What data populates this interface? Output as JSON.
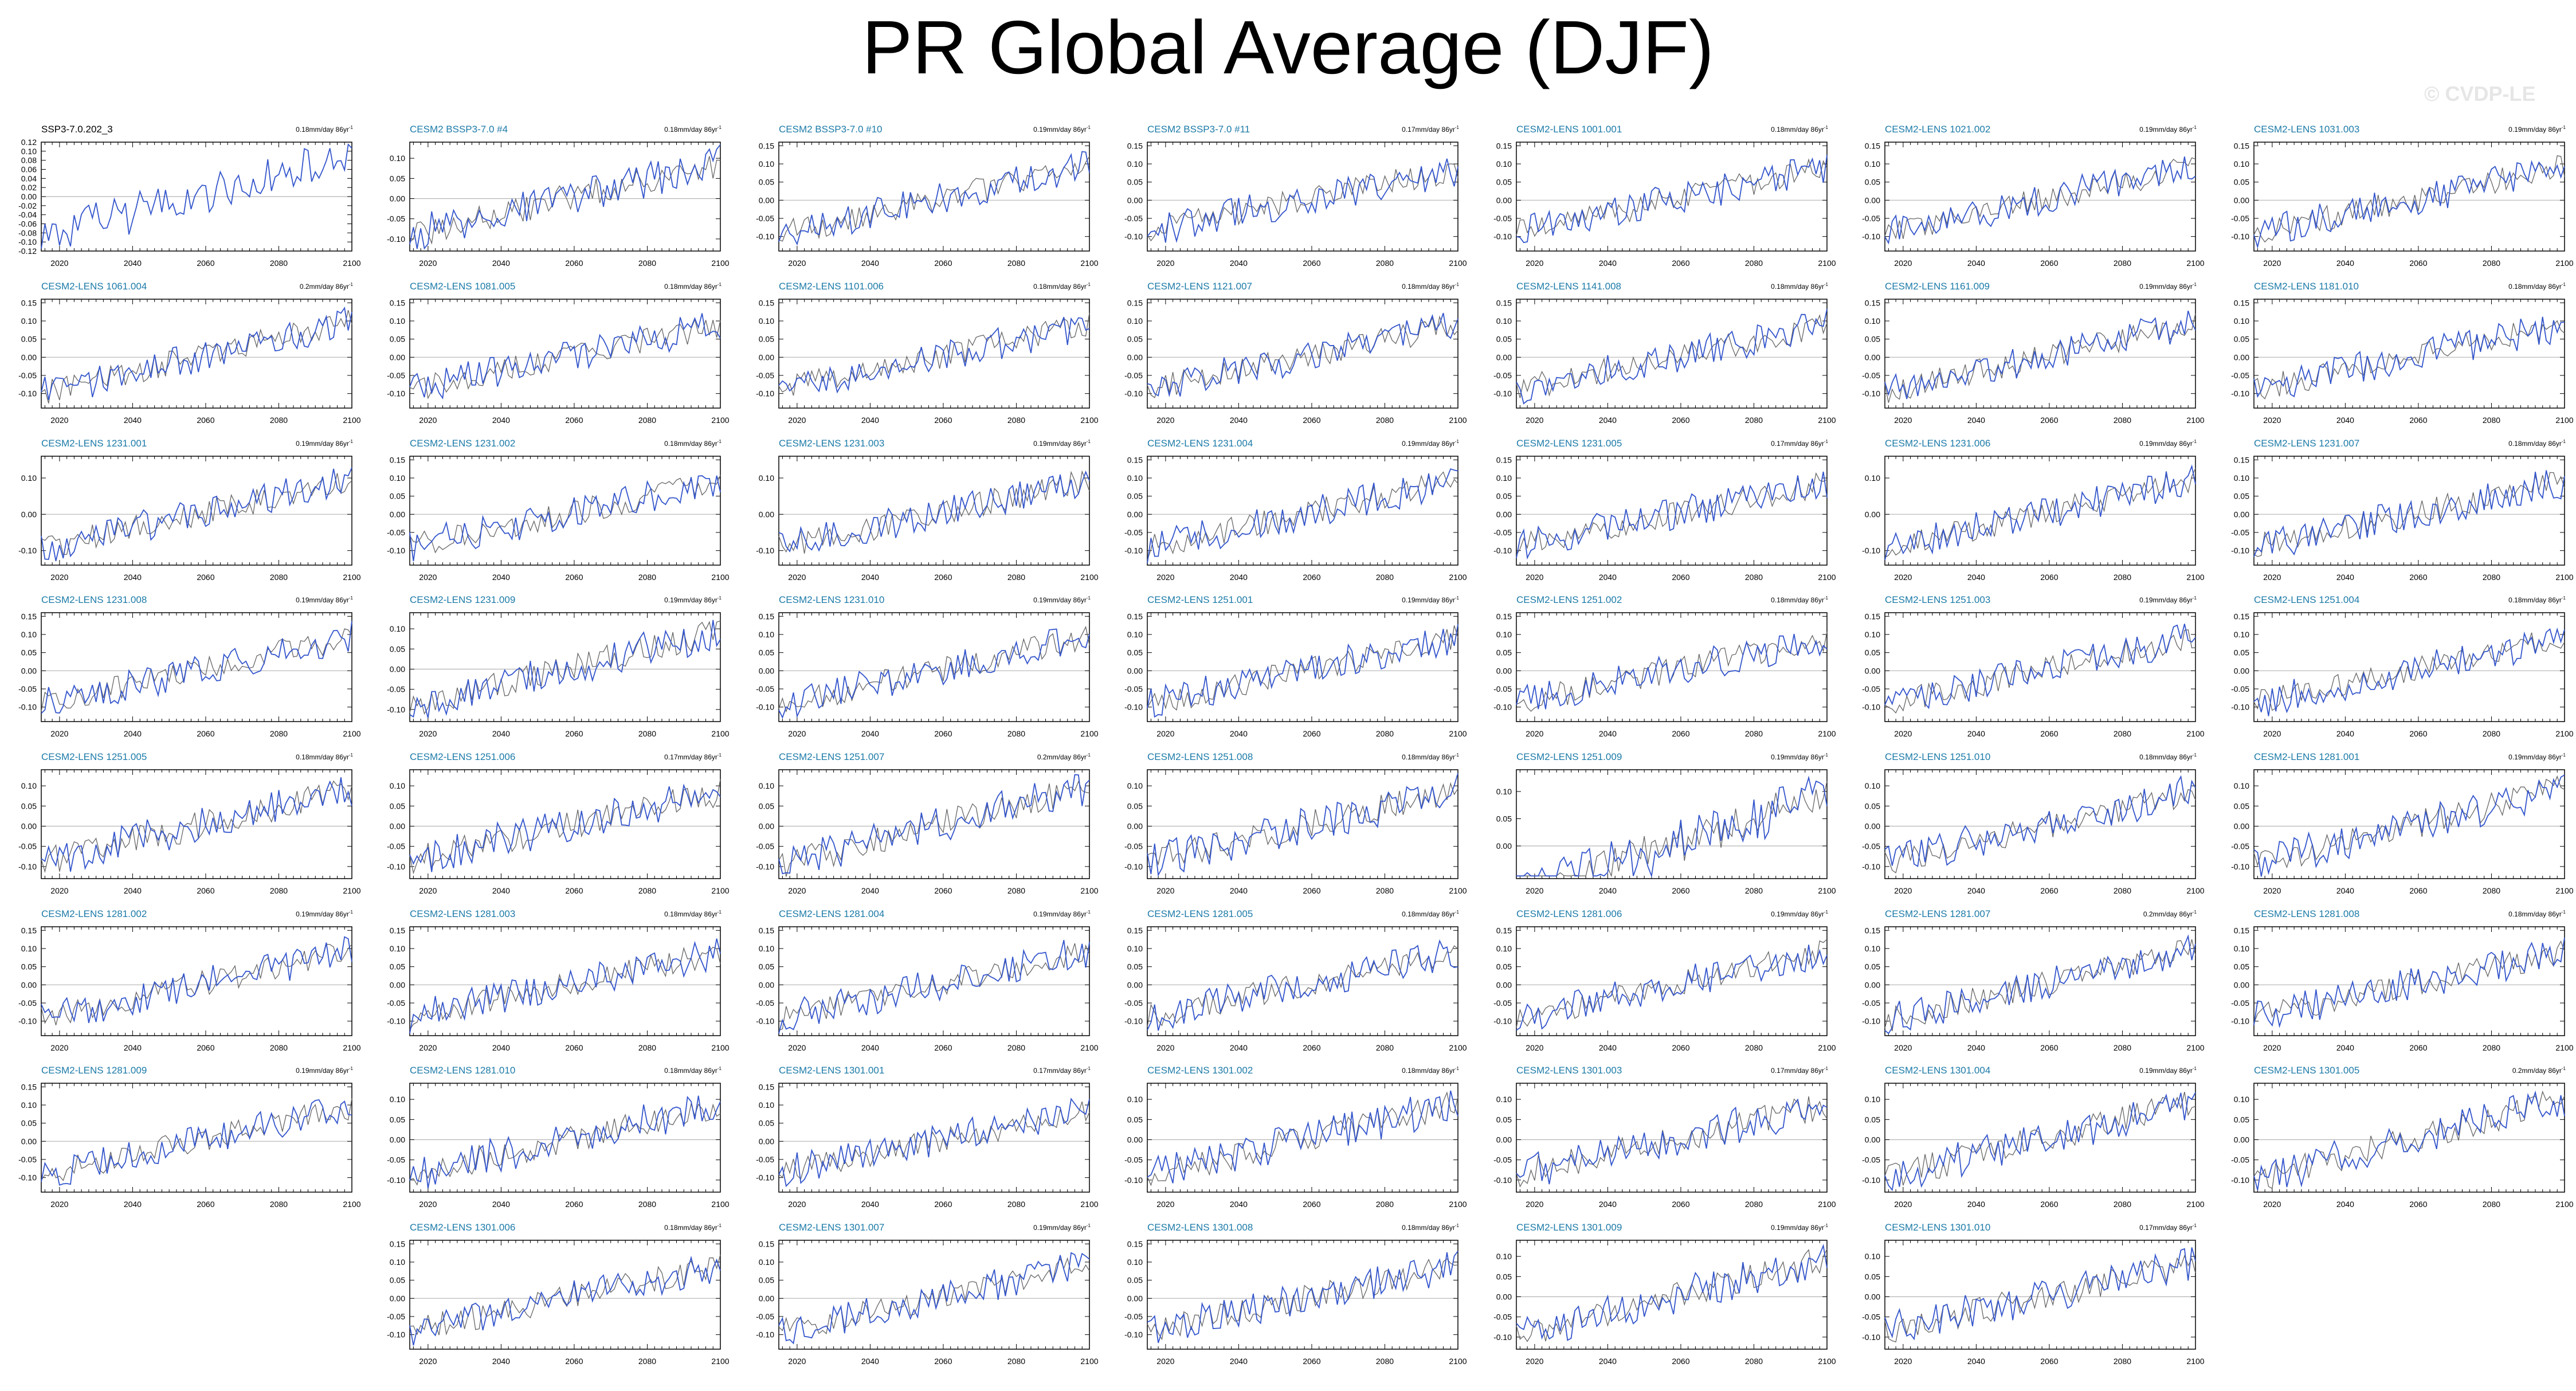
{
  "page": {
    "title": "PR Global Average (DJF)",
    "watermark": "© CVDP-LE"
  },
  "colors": {
    "observation": "#000000",
    "model": "#3355cc",
    "reference": "#b4b4b4",
    "title_model": "#1b7aa8"
  },
  "chart_data": {
    "type": "line",
    "x_ticks": [
      2020,
      2040,
      2060,
      2080,
      2100
    ],
    "xlim": [
      2015,
      2100
    ],
    "default_y_ticks": [
      "0.15",
      "0.10",
      "0.05",
      "0.00",
      "-0.05",
      "-0.10"
    ],
    "default_ylim": [
      -0.14,
      0.16
    ],
    "panels": [
      {
        "title": "SSP3-7.0.202_3",
        "trend": "0.18mm/day 86yr",
        "obs": true,
        "yticks": [
          "0.12",
          "0.10",
          "0.08",
          "0.06",
          "0.04",
          "0.02",
          "0.00",
          "-0.02",
          "-0.04",
          "-0.06",
          "-0.08",
          "-0.10",
          "-0.12"
        ],
        "ylim": [
          -0.12,
          0.12
        ]
      },
      {
        "title": "CESM2 BSSP3-7.0 #4",
        "trend": "0.18mm/day 86yr",
        "yticks": [
          "0.10",
          "0.05",
          "0.00",
          "-0.05",
          "-0.10"
        ],
        "ylim": [
          -0.13,
          0.14
        ]
      },
      {
        "title": "CESM2 BSSP3-7.0 #10",
        "trend": "0.19mm/day 86yr"
      },
      {
        "title": "CESM2 BSSP3-7.0 #11",
        "trend": "0.17mm/day 86yr"
      },
      {
        "title": "CESM2-LENS 1001.001",
        "trend": "0.18mm/day 86yr"
      },
      {
        "title": "CESM2-LENS 1021.002",
        "trend": "0.19mm/day 86yr"
      },
      {
        "title": "CESM2-LENS 1031.003",
        "trend": "0.19mm/day 86yr"
      },
      {
        "title": "CESM2-LENS 1061.004",
        "trend": "0.2mm/day 86yr"
      },
      {
        "title": "CESM2-LENS 1081.005",
        "trend": "0.18mm/day 86yr"
      },
      {
        "title": "CESM2-LENS 1101.006",
        "trend": "0.18mm/day 86yr"
      },
      {
        "title": "CESM2-LENS 1121.007",
        "trend": "0.18mm/day 86yr"
      },
      {
        "title": "CESM2-LENS 1141.008",
        "trend": "0.18mm/day 86yr"
      },
      {
        "title": "CESM2-LENS 1161.009",
        "trend": "0.19mm/day 86yr"
      },
      {
        "title": "CESM2-LENS 1181.010",
        "trend": "0.18mm/day 86yr"
      },
      {
        "title": "CESM2-LENS 1231.001",
        "trend": "0.19mm/day 86yr",
        "yticks": [
          "0.10",
          "0.00",
          "-0.10"
        ],
        "ylim": [
          -0.14,
          0.16
        ]
      },
      {
        "title": "CESM2-LENS 1231.002",
        "trend": "0.18mm/day 86yr"
      },
      {
        "title": "CESM2-LENS 1231.003",
        "trend": "0.19mm/day 86yr",
        "yticks": [
          "0.10",
          "0.00",
          "-0.10"
        ],
        "ylim": [
          -0.14,
          0.16
        ]
      },
      {
        "title": "CESM2-LENS 1231.004",
        "trend": "0.19mm/day 86yr"
      },
      {
        "title": "CESM2-LENS 1231.005",
        "trend": "0.17mm/day 86yr"
      },
      {
        "title": "CESM2-LENS 1231.006",
        "trend": "0.19mm/day 86yr",
        "yticks": [
          "0.10",
          "0.00",
          "-0.10"
        ],
        "ylim": [
          -0.14,
          0.16
        ]
      },
      {
        "title": "CESM2-LENS 1231.007",
        "trend": "0.18mm/day 86yr"
      },
      {
        "title": "CESM2-LENS 1231.008",
        "trend": "0.19mm/day 86yr"
      },
      {
        "title": "CESM2-LENS 1231.009",
        "trend": "0.19mm/day 86yr",
        "yticks": [
          "0.10",
          "0.05",
          "0.00",
          "-0.05",
          "-0.10"
        ],
        "ylim": [
          -0.13,
          0.14
        ]
      },
      {
        "title": "CESM2-LENS 1231.010",
        "trend": "0.19mm/day 86yr"
      },
      {
        "title": "CESM2-LENS 1251.001",
        "trend": "0.19mm/day 86yr"
      },
      {
        "title": "CESM2-LENS 1251.002",
        "trend": "0.18mm/day 86yr"
      },
      {
        "title": "CESM2-LENS 1251.003",
        "trend": "0.19mm/day 86yr"
      },
      {
        "title": "CESM2-LENS 1251.004",
        "trend": "0.18mm/day 86yr"
      },
      {
        "title": "CESM2-LENS 1251.005",
        "trend": "0.18mm/day 86yr",
        "yticks": [
          "0.10",
          "0.05",
          "0.00",
          "-0.05",
          "-0.10"
        ],
        "ylim": [
          -0.13,
          0.14
        ]
      },
      {
        "title": "CESM2-LENS 1251.006",
        "trend": "0.17mm/day 86yr",
        "yticks": [
          "0.10",
          "0.05",
          "0.00",
          "-0.05",
          "-0.10"
        ],
        "ylim": [
          -0.13,
          0.14
        ]
      },
      {
        "title": "CESM2-LENS 1251.007",
        "trend": "0.2mm/day 86yr",
        "yticks": [
          "0.10",
          "0.05",
          "0.00",
          "-0.05",
          "-0.10"
        ],
        "ylim": [
          -0.13,
          0.14
        ]
      },
      {
        "title": "CESM2-LENS 1251.008",
        "trend": "0.18mm/day 86yr",
        "yticks": [
          "0.10",
          "0.05",
          "0.00",
          "-0.05",
          "-0.10"
        ],
        "ylim": [
          -0.13,
          0.14
        ]
      },
      {
        "title": "CESM2-LENS 1251.009",
        "trend": "0.19mm/day 86yr",
        "yticks": [
          "0.10",
          "0.05",
          "0.00"
        ],
        "ylim": [
          -0.06,
          0.14
        ]
      },
      {
        "title": "CESM2-LENS 1251.010",
        "trend": "0.18mm/day 86yr",
        "yticks": [
          "0.10",
          "0.05",
          "0.00",
          "-0.05",
          "-0.10"
        ],
        "ylim": [
          -0.13,
          0.14
        ]
      },
      {
        "title": "CESM2-LENS 1281.001",
        "trend": "0.19mm/day 86yr",
        "yticks": [
          "0.10",
          "0.05",
          "0.00",
          "-0.05",
          "-0.10"
        ],
        "ylim": [
          -0.13,
          0.14
        ]
      },
      {
        "title": "CESM2-LENS 1281.002",
        "trend": "0.19mm/day 86yr"
      },
      {
        "title": "CESM2-LENS 1281.003",
        "trend": "0.18mm/day 86yr"
      },
      {
        "title": "CESM2-LENS 1281.004",
        "trend": "0.19mm/day 86yr"
      },
      {
        "title": "CESM2-LENS 1281.005",
        "trend": "0.18mm/day 86yr"
      },
      {
        "title": "CESM2-LENS 1281.006",
        "trend": "0.19mm/day 86yr"
      },
      {
        "title": "CESM2-LENS 1281.007",
        "trend": "0.2mm/day 86yr"
      },
      {
        "title": "CESM2-LENS 1281.008",
        "trend": "0.18mm/day 86yr"
      },
      {
        "title": "CESM2-LENS 1281.009",
        "trend": "0.19mm/day 86yr"
      },
      {
        "title": "CESM2-LENS 1281.010",
        "trend": "0.18mm/day 86yr",
        "yticks": [
          "0.10",
          "0.05",
          "0.00",
          "-0.05",
          "-0.10"
        ],
        "ylim": [
          -0.13,
          0.14
        ]
      },
      {
        "title": "CESM2-LENS 1301.001",
        "trend": "0.17mm/day 86yr"
      },
      {
        "title": "CESM2-LENS 1301.002",
        "trend": "0.18mm/day 86yr",
        "yticks": [
          "0.10",
          "0.05",
          "0.00",
          "-0.05",
          "-0.10"
        ],
        "ylim": [
          -0.13,
          0.14
        ]
      },
      {
        "title": "CESM2-LENS 1301.003",
        "trend": "0.17mm/day 86yr",
        "yticks": [
          "0.10",
          "0.05",
          "0.00",
          "-0.05",
          "-0.10"
        ],
        "ylim": [
          -0.13,
          0.14
        ]
      },
      {
        "title": "CESM2-LENS 1301.004",
        "trend": "0.19mm/day 86yr",
        "yticks": [
          "0.10",
          "0.05",
          "0.00",
          "-0.05",
          "-0.10"
        ],
        "ylim": [
          -0.13,
          0.14
        ]
      },
      {
        "title": "CESM2-LENS 1301.005",
        "trend": "0.2mm/day 86yr",
        "yticks": [
          "0.10",
          "0.05",
          "0.00",
          "-0.05",
          "-0.10"
        ],
        "ylim": [
          -0.13,
          0.14
        ]
      },
      {
        "title": "CESM2-LENS 1301.006",
        "trend": "0.18mm/day 86yr"
      },
      {
        "title": "CESM2-LENS 1301.007",
        "trend": "0.19mm/day 86yr"
      },
      {
        "title": "CESM2-LENS 1301.008",
        "trend": "0.18mm/day 86yr"
      },
      {
        "title": "CESM2-LENS 1301.009",
        "trend": "0.19mm/day 86yr",
        "yticks": [
          "0.10",
          "0.05",
          "0.00",
          "-0.05",
          "-0.10"
        ],
        "ylim": [
          -0.13,
          0.14
        ]
      },
      {
        "title": "CESM2-LENS 1301.010",
        "trend": "0.17mm/day 86yr",
        "yticks": [
          "0.10",
          "0.05",
          "0.00",
          "-0.05",
          "-0.10"
        ],
        "ylim": [
          -0.13,
          0.14
        ]
      }
    ]
  }
}
